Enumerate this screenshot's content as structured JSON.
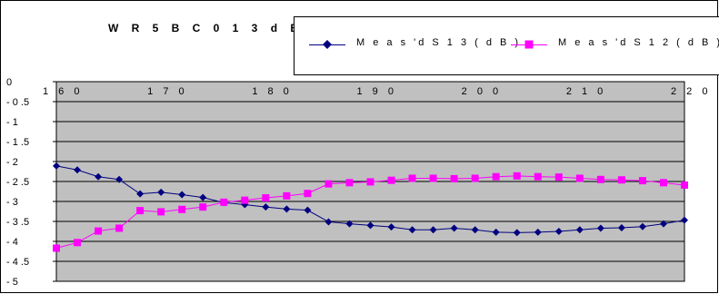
{
  "chart_data": {
    "type": "line",
    "title": "W R 5  B C 0 1  3 d B",
    "xlabel": "",
    "ylabel": "",
    "xlim": [
      160,
      220
    ],
    "ylim": [
      -5,
      0
    ],
    "grid": true,
    "legend_position": "top-right",
    "plot_background": "#c0c0c0",
    "x_tick_labels": [
      "1 6 0",
      "1 7 0",
      "1 8 0",
      "1 9 0",
      "2 0 0",
      "2 1 0",
      "2 2 0"
    ],
    "y_tick_labels": [
      "0",
      "- 0 .5",
      "- 1",
      "- 1 .5",
      "- 2",
      "- 2 .5",
      "- 3",
      "- 3 .5",
      "- 4",
      "- 4 .5",
      "- 5"
    ],
    "x": [
      160,
      162,
      164,
      166,
      168,
      170,
      172,
      174,
      176,
      178,
      180,
      182,
      184,
      186,
      188,
      190,
      192,
      194,
      196,
      198,
      200,
      202,
      204,
      206,
      208,
      210,
      212,
      214,
      216,
      218,
      220
    ],
    "series": [
      {
        "name": "M e a s 'd  S 1 3 ( d B )",
        "color": "#000080",
        "marker": "diamond",
        "values": [
          -2.11,
          -2.21,
          -2.38,
          -2.45,
          -2.81,
          -2.77,
          -2.83,
          -2.9,
          -3.03,
          -3.08,
          -3.14,
          -3.19,
          -3.22,
          -3.51,
          -3.56,
          -3.6,
          -3.64,
          -3.71,
          -3.71,
          -3.67,
          -3.71,
          -3.77,
          -3.78,
          -3.77,
          -3.75,
          -3.71,
          -3.67,
          -3.66,
          -3.63,
          -3.56,
          -3.47
        ]
      },
      {
        "name": "M e a s 'd  S 1 2 ( d B )",
        "color": "#ff00ff",
        "marker": "square",
        "values": [
          -4.17,
          -4.03,
          -3.74,
          -3.67,
          -3.23,
          -3.26,
          -3.2,
          -3.14,
          -3.02,
          -2.97,
          -2.91,
          -2.86,
          -2.8,
          -2.56,
          -2.53,
          -2.51,
          -2.47,
          -2.42,
          -2.42,
          -2.43,
          -2.42,
          -2.38,
          -2.36,
          -2.38,
          -2.39,
          -2.42,
          -2.45,
          -2.46,
          -2.48,
          -2.53,
          -2.59
        ]
      }
    ]
  }
}
